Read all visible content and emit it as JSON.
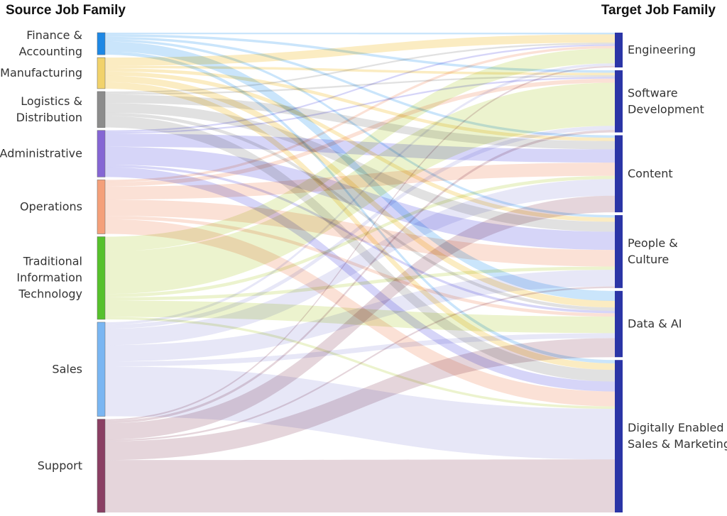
{
  "headers": {
    "source": "Source Job Family",
    "target": "Target Job Family"
  },
  "sources": [
    {
      "id": "finance",
      "lines": [
        "Finance &",
        "Accounting"
      ],
      "color": "#1e88e5",
      "link_color": "#9fd0f7"
    },
    {
      "id": "manufacturing",
      "lines": [
        "Manufacturing"
      ],
      "color": "#f1d26b",
      "link_color": "#f7dc8f"
    },
    {
      "id": "logistics",
      "lines": [
        "Logistics &",
        "Distribution"
      ],
      "color": "#8c8c8c",
      "link_color": "#c9c9c9"
    },
    {
      "id": "administrative",
      "lines": [
        "Administrative"
      ],
      "color": "#8566d4",
      "link_color": "#b4b2f2"
    },
    {
      "id": "operations",
      "lines": [
        "Operations"
      ],
      "color": "#f4a07a",
      "link_color": "#f8c8b5"
    },
    {
      "id": "traditional-it",
      "lines": [
        "Traditional",
        "Information",
        "Technology"
      ],
      "color": "#56c12c",
      "link_color": "#dde9a6"
    },
    {
      "id": "sales",
      "lines": [
        "Sales"
      ],
      "color": "#7ab6f2",
      "link_color": "#d3d3f1"
    },
    {
      "id": "support",
      "lines": [
        "Support"
      ],
      "color": "#8a3f63",
      "link_color": "#d0b2be"
    }
  ],
  "targets": [
    {
      "id": "engineering",
      "lines": [
        "Engineering"
      ],
      "color": "#2b35a6"
    },
    {
      "id": "software-development",
      "lines": [
        "Software",
        "Development"
      ],
      "color": "#2b35a6"
    },
    {
      "id": "content",
      "lines": [
        "Content"
      ],
      "color": "#2b35a6"
    },
    {
      "id": "people-culture",
      "lines": [
        "People &",
        "Culture"
      ],
      "color": "#2b35a6"
    },
    {
      "id": "data-ai",
      "lines": [
        "Data & AI"
      ],
      "color": "#2b35a6"
    },
    {
      "id": "digital-sales-marketing",
      "lines": [
        "Digitally Enabled",
        "Sales & Marketing"
      ],
      "color": "#2b35a6"
    }
  ],
  "links": [
    {
      "source": "finance",
      "target": "engineering",
      "value": 2
    },
    {
      "source": "finance",
      "target": "software-development",
      "value": 3
    },
    {
      "source": "finance",
      "target": "content",
      "value": 3
    },
    {
      "source": "finance",
      "target": "people-culture",
      "value": 3
    },
    {
      "source": "finance",
      "target": "data-ai",
      "value": 12
    },
    {
      "source": "finance",
      "target": "digital-sales-marketing",
      "value": 4
    },
    {
      "source": "manufacturing",
      "target": "engineering",
      "value": 10
    },
    {
      "source": "manufacturing",
      "target": "software-development",
      "value": 3
    },
    {
      "source": "manufacturing",
      "target": "content",
      "value": 4
    },
    {
      "source": "manufacturing",
      "target": "people-culture",
      "value": 5
    },
    {
      "source": "manufacturing",
      "target": "data-ai",
      "value": 8
    },
    {
      "source": "manufacturing",
      "target": "digital-sales-marketing",
      "value": 8
    },
    {
      "source": "logistics",
      "target": "engineering",
      "value": 2
    },
    {
      "source": "logistics",
      "target": "software-development",
      "value": 2
    },
    {
      "source": "logistics",
      "target": "content",
      "value": 10
    },
    {
      "source": "logistics",
      "target": "people-culture",
      "value": 12
    },
    {
      "source": "logistics",
      "target": "data-ai",
      "value": 4
    },
    {
      "source": "logistics",
      "target": "digital-sales-marketing",
      "value": 14
    },
    {
      "source": "administrative",
      "target": "engineering",
      "value": 2
    },
    {
      "source": "administrative",
      "target": "software-development",
      "value": 2
    },
    {
      "source": "administrative",
      "target": "content",
      "value": 16
    },
    {
      "source": "administrative",
      "target": "people-culture",
      "value": 22
    },
    {
      "source": "administrative",
      "target": "data-ai",
      "value": 3
    },
    {
      "source": "administrative",
      "target": "digital-sales-marketing",
      "value": 12
    },
    {
      "source": "operations",
      "target": "engineering",
      "value": 3
    },
    {
      "source": "operations",
      "target": "software-development",
      "value": 5
    },
    {
      "source": "operations",
      "target": "content",
      "value": 16
    },
    {
      "source": "operations",
      "target": "people-culture",
      "value": 20
    },
    {
      "source": "operations",
      "target": "data-ai",
      "value": 4
    },
    {
      "source": "operations",
      "target": "digital-sales-marketing",
      "value": 18
    },
    {
      "source": "traditional-it",
      "target": "engineering",
      "value": 18
    },
    {
      "source": "traditional-it",
      "target": "software-development",
      "value": 52
    },
    {
      "source": "traditional-it",
      "target": "content",
      "value": 4
    },
    {
      "source": "traditional-it",
      "target": "people-culture",
      "value": 4
    },
    {
      "source": "traditional-it",
      "target": "data-ai",
      "value": 20
    },
    {
      "source": "traditional-it",
      "target": "digital-sales-marketing",
      "value": 3
    },
    {
      "source": "sales",
      "target": "engineering",
      "value": 3
    },
    {
      "source": "sales",
      "target": "software-development",
      "value": 5
    },
    {
      "source": "sales",
      "target": "content",
      "value": 20
    },
    {
      "source": "sales",
      "target": "people-culture",
      "value": 20
    },
    {
      "source": "sales",
      "target": "data-ai",
      "value": 6
    },
    {
      "source": "sales",
      "target": "digital-sales-marketing",
      "value": 61
    },
    {
      "source": "support",
      "target": "engineering",
      "value": 2
    },
    {
      "source": "support",
      "target": "software-development",
      "value": 3
    },
    {
      "source": "support",
      "target": "content",
      "value": 20
    },
    {
      "source": "support",
      "target": "people-culture",
      "value": 2
    },
    {
      "source": "support",
      "target": "data-ai",
      "value": 23
    },
    {
      "source": "support",
      "target": "digital-sales-marketing",
      "value": 64
    }
  ]
}
